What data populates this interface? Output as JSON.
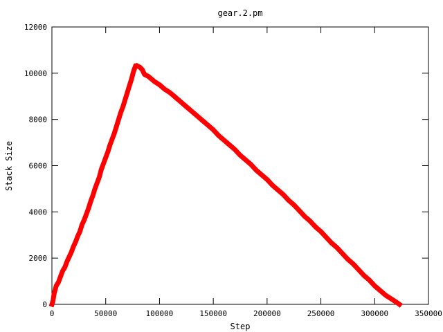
{
  "chart_data": {
    "type": "line",
    "title": "gear.2.pm",
    "xlabel": "Step",
    "ylabel": "Stack Size",
    "xlim": [
      0,
      350000
    ],
    "ylim": [
      0,
      12000
    ],
    "x_ticks": [
      0,
      50000,
      100000,
      150000,
      200000,
      250000,
      300000,
      350000
    ],
    "y_ticks": [
      0,
      2000,
      4000,
      6000,
      8000,
      10000,
      12000
    ],
    "grid": false,
    "legend": "none",
    "series": [
      {
        "color": "#ff0000",
        "points": [
          [
            0,
            0
          ],
          [
            1000,
            150
          ],
          [
            2000,
            450
          ],
          [
            4000,
            800
          ],
          [
            6000,
            950
          ],
          [
            8000,
            1200
          ],
          [
            10000,
            1450
          ],
          [
            12000,
            1600
          ],
          [
            14000,
            1850
          ],
          [
            16000,
            2050
          ],
          [
            18000,
            2250
          ],
          [
            20000,
            2500
          ],
          [
            22000,
            2700
          ],
          [
            24000,
            2950
          ],
          [
            26000,
            3150
          ],
          [
            28000,
            3450
          ],
          [
            30000,
            3650
          ],
          [
            32000,
            3900
          ],
          [
            34000,
            4150
          ],
          [
            36000,
            4450
          ],
          [
            38000,
            4700
          ],
          [
            40000,
            5000
          ],
          [
            42000,
            5250
          ],
          [
            44000,
            5500
          ],
          [
            46000,
            5850
          ],
          [
            48000,
            6100
          ],
          [
            50000,
            6350
          ],
          [
            52000,
            6600
          ],
          [
            54000,
            6900
          ],
          [
            56000,
            7150
          ],
          [
            58000,
            7400
          ],
          [
            60000,
            7700
          ],
          [
            62000,
            8000
          ],
          [
            64000,
            8300
          ],
          [
            66000,
            8550
          ],
          [
            68000,
            8850
          ],
          [
            70000,
            9150
          ],
          [
            72000,
            9450
          ],
          [
            74000,
            9750
          ],
          [
            76000,
            10100
          ],
          [
            78000,
            10350
          ],
          [
            80000,
            10300
          ],
          [
            82000,
            10250
          ],
          [
            84000,
            10150
          ],
          [
            86000,
            9950
          ],
          [
            90000,
            9850
          ],
          [
            95000,
            9650
          ],
          [
            100000,
            9500
          ],
          [
            105000,
            9300
          ],
          [
            110000,
            9150
          ],
          [
            115000,
            8950
          ],
          [
            120000,
            8750
          ],
          [
            125000,
            8550
          ],
          [
            130000,
            8350
          ],
          [
            135000,
            8150
          ],
          [
            140000,
            7950
          ],
          [
            145000,
            7750
          ],
          [
            150000,
            7550
          ],
          [
            155000,
            7300
          ],
          [
            160000,
            7100
          ],
          [
            165000,
            6900
          ],
          [
            170000,
            6700
          ],
          [
            175000,
            6450
          ],
          [
            180000,
            6250
          ],
          [
            185000,
            6050
          ],
          [
            190000,
            5800
          ],
          [
            195000,
            5600
          ],
          [
            200000,
            5400
          ],
          [
            205000,
            5150
          ],
          [
            210000,
            4950
          ],
          [
            215000,
            4750
          ],
          [
            220000,
            4500
          ],
          [
            225000,
            4300
          ],
          [
            230000,
            4050
          ],
          [
            235000,
            3800
          ],
          [
            240000,
            3600
          ],
          [
            245000,
            3350
          ],
          [
            250000,
            3150
          ],
          [
            255000,
            2900
          ],
          [
            260000,
            2650
          ],
          [
            265000,
            2450
          ],
          [
            270000,
            2200
          ],
          [
            275000,
            1950
          ],
          [
            280000,
            1750
          ],
          [
            285000,
            1500
          ],
          [
            290000,
            1250
          ],
          [
            295000,
            1050
          ],
          [
            300000,
            800
          ],
          [
            305000,
            600
          ],
          [
            310000,
            400
          ],
          [
            315000,
            250
          ],
          [
            320000,
            100
          ],
          [
            323000,
            0
          ]
        ]
      }
    ]
  }
}
